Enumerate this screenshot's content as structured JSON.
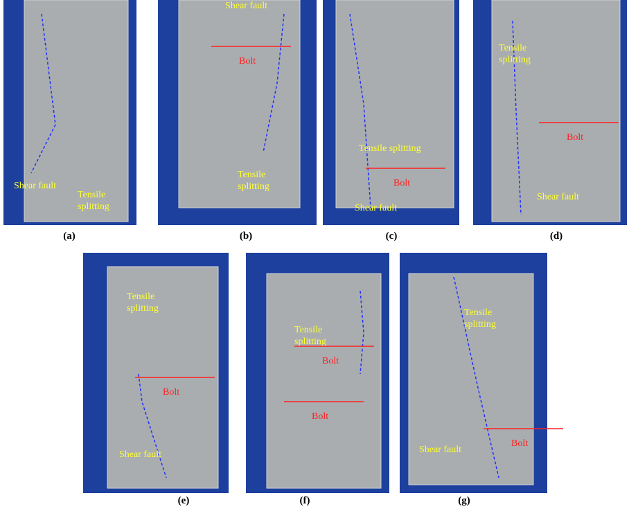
{
  "panels": [
    {
      "label": "(a)",
      "annotations": [
        {
          "lines": [
            "Shear fault"
          ]
        },
        {
          "lines": [
            "Tensile",
            "splitting"
          ]
        }
      ]
    },
    {
      "label": "(b)",
      "annotations": [
        {
          "lines": [
            "Shear fault"
          ]
        },
        {
          "lines": [
            "Bolt"
          ]
        },
        {
          "lines": [
            "Tensile",
            "splitting"
          ]
        }
      ]
    },
    {
      "label": "(c)",
      "annotations": [
        {
          "lines": [
            "Tensile splitting"
          ]
        },
        {
          "lines": [
            "Bolt"
          ]
        },
        {
          "lines": [
            "Shear fault"
          ]
        }
      ]
    },
    {
      "label": "(d)",
      "annotations": [
        {
          "lines": [
            "Tensile",
            "splitting"
          ]
        },
        {
          "lines": [
            "Bolt"
          ]
        },
        {
          "lines": [
            "Shear fault"
          ]
        }
      ]
    },
    {
      "label": "(e)",
      "annotations": [
        {
          "lines": [
            "Tensile",
            "splitting"
          ]
        },
        {
          "lines": [
            "Bolt"
          ]
        },
        {
          "lines": [
            "Shear fault"
          ]
        }
      ]
    },
    {
      "label": "(f)",
      "annotations": [
        {
          "lines": [
            "Tensile",
            "splitting"
          ]
        },
        {
          "lines": [
            "Bolt"
          ]
        },
        {
          "lines": [
            "Bolt"
          ]
        }
      ]
    },
    {
      "label": "(g)",
      "annotations": [
        {
          "lines": [
            "Tensile",
            "splitting"
          ]
        },
        {
          "lines": [
            "Shear fault"
          ]
        },
        {
          "lines": [
            "Bolt"
          ]
        }
      ]
    }
  ]
}
